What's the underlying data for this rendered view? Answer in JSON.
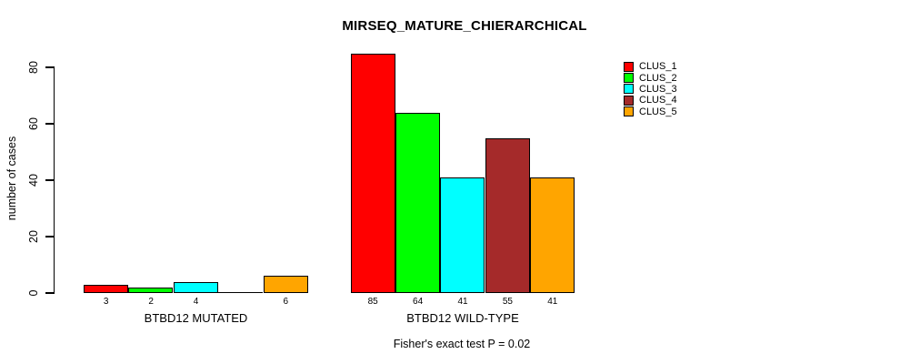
{
  "chart_data": {
    "type": "bar",
    "title": "MIRSEQ_MATURE_CHIERARCHICAL",
    "ylabel": "number of cases",
    "xlabel": "",
    "yticks": [
      0,
      20,
      40,
      60,
      80
    ],
    "ylim": [
      0,
      87
    ],
    "grid": false,
    "legend_position": "top-right",
    "categories": [
      "BTBD12 MUTATED",
      "BTBD12 WILD-TYPE"
    ],
    "series": [
      {
        "name": "CLUS_1",
        "color": "#ff0000",
        "values": [
          3,
          85
        ]
      },
      {
        "name": "CLUS_2",
        "color": "#00ff00",
        "values": [
          2,
          64
        ]
      },
      {
        "name": "CLUS_3",
        "color": "#00ffff",
        "values": [
          4,
          41
        ]
      },
      {
        "name": "CLUS_4",
        "color": "#a52a2a",
        "values": [
          0,
          55
        ]
      },
      {
        "name": "CLUS_5",
        "color": "#ffa500",
        "values": [
          6,
          41
        ]
      }
    ],
    "bar_value_labels": {
      "show": true,
      "hide_zero": true
    },
    "annotation": "Fisher's exact test P = 0.02"
  }
}
